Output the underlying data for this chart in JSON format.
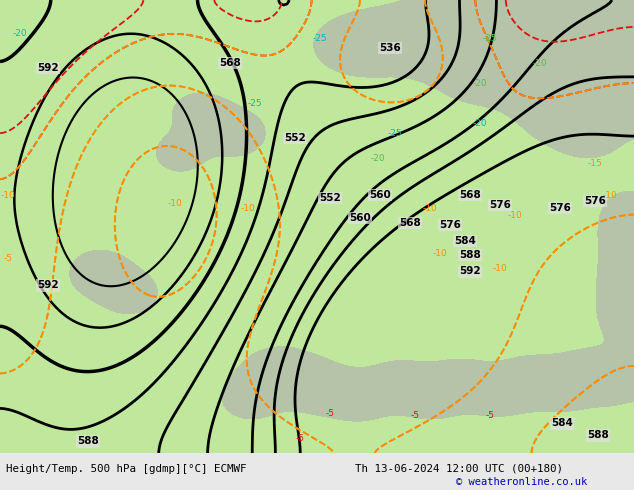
{
  "title_left": "Height/Temp. 500 hPa [gdmp][°C] ECMWF",
  "title_right": "Th 13-06-2024 12:00 UTC (00+180)",
  "copyright": "© weatheronline.co.uk",
  "bg_color": "#e8e8e8",
  "map_bg_color": "#e0e0e0",
  "green_fill_color": "#b8e890",
  "gray_land_color": "#b0b0b0",
  "geop_color": "#000000",
  "temp_warm_color": "#ff8c00",
  "temp_cold_color": "#e01010",
  "temp_cyan_color": "#00b8b8",
  "temp_lgreen_color": "#50c050",
  "footer_bg": "#c8c8c8",
  "footer_text_color": "#000000",
  "copyright_color": "#0000bb",
  "figsize": [
    6.34,
    4.9
  ],
  "dpi": 100
}
